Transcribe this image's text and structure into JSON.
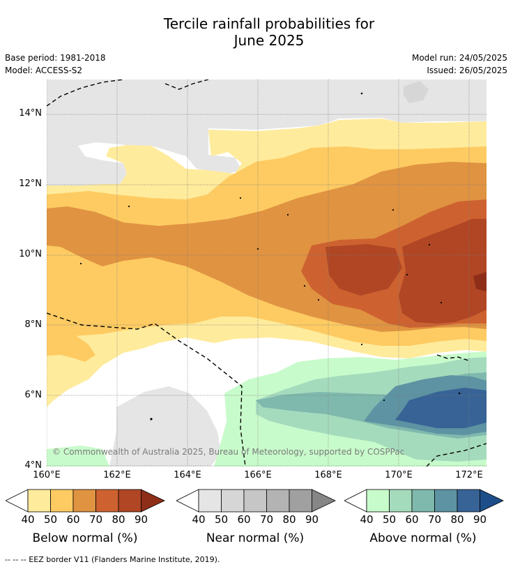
{
  "title_line1": "Tercile rainfall probabilities for",
  "title_line2": "June 2025",
  "meta": {
    "base_period": "Base period: 1981-2018",
    "model": "Model: ACCESS-S2",
    "model_run": "Model run: 24/05/2025",
    "issued": "Issued: 26/05/2025"
  },
  "map": {
    "lat_labels": [
      "14°N",
      "12°N",
      "10°N",
      "8°N",
      "6°N",
      "4°N"
    ],
    "lon_labels": [
      "160°E",
      "162°E",
      "164°E",
      "166°E",
      "168°E",
      "170°E",
      "172°E"
    ],
    "copyright": "© Commonwealth of Australia 2025, Bureau of Meteorology, supported by COSPPac",
    "colors": {
      "below": [
        "#ffeb9c",
        "#fdcb62",
        "#e09341",
        "#cd6230",
        "#b04624",
        "#8e2e18"
      ],
      "near": [
        "#e5e5e5",
        "#d6d6d6",
        "#c6c6c6",
        "#b3b3b3",
        "#a0a0a0",
        "#868686"
      ],
      "above": [
        "#c8fbcb",
        "#a5dbbd",
        "#7fb9ae",
        "#5d93a2",
        "#376396",
        "#1d4e8a"
      ]
    }
  },
  "legend": {
    "ticks": [
      "40",
      "50",
      "60",
      "70",
      "80",
      "90"
    ],
    "below_label": "Below normal (%)",
    "near_label": "Near normal (%)",
    "above_label": "Above normal (%)"
  },
  "footnote": "--  --  -- EEZ border V11 (Flanders Marine Institute, 2019)."
}
